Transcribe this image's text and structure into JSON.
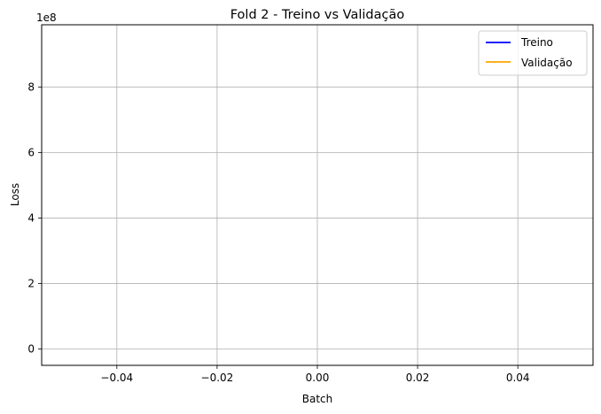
{
  "chart_data": {
    "type": "line",
    "title": "Fold 2 - Treino vs Validação",
    "xlabel": "Batch",
    "ylabel": "Loss",
    "y_offset_label": "1e8",
    "xlim": [
      -0.055,
      0.055
    ],
    "ylim": [
      -0.05,
      0.99
    ],
    "x_ticks": [
      -0.04,
      -0.02,
      0.0,
      0.02,
      0.04
    ],
    "x_tick_labels": [
      "−0.04",
      "−0.02",
      "0.00",
      "0.02",
      "0.04"
    ],
    "y_ticks": [
      0,
      0.2,
      0.4,
      0.6,
      0.8
    ],
    "y_tick_labels": [
      "0",
      "2",
      "4",
      "6",
      "8"
    ],
    "grid": true,
    "legend_position": "top-right",
    "series": [
      {
        "name": "Treino",
        "color": "#0000ff",
        "x": [],
        "y": []
      },
      {
        "name": "Validação",
        "color": "#ffa500",
        "x": [],
        "y": []
      }
    ]
  }
}
